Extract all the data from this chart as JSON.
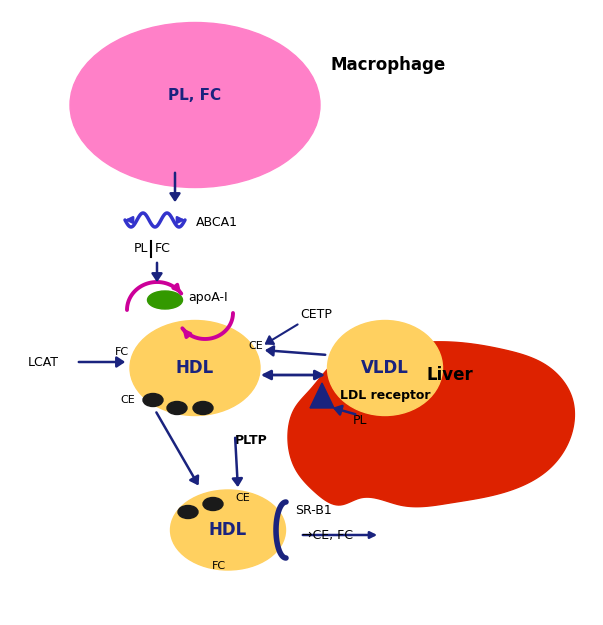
{
  "bg_color": "#ffffff",
  "dark_navy": "#1a237e",
  "arrow_color": "#1a237e",
  "magenta_arrow": "#CC0099",
  "macrophage_color": "#FF80C8",
  "hdl_color": "#FFD060",
  "liver_color": "#DD2200",
  "dot_color": "#1a1a1a",
  "green_color": "#339900",
  "wave_color": "#3333CC",
  "abca1_label": "ABCA1",
  "apoa1_label": "apoA-I",
  "cetp_label": "CETP",
  "pltp_label": "PLTP",
  "lcat_label": "LCAT",
  "ldlr_label": "LDL receptor",
  "srb1_label": "SR-B1",
  "liver_label": "Liver",
  "macrophage_label": "Macrophage"
}
